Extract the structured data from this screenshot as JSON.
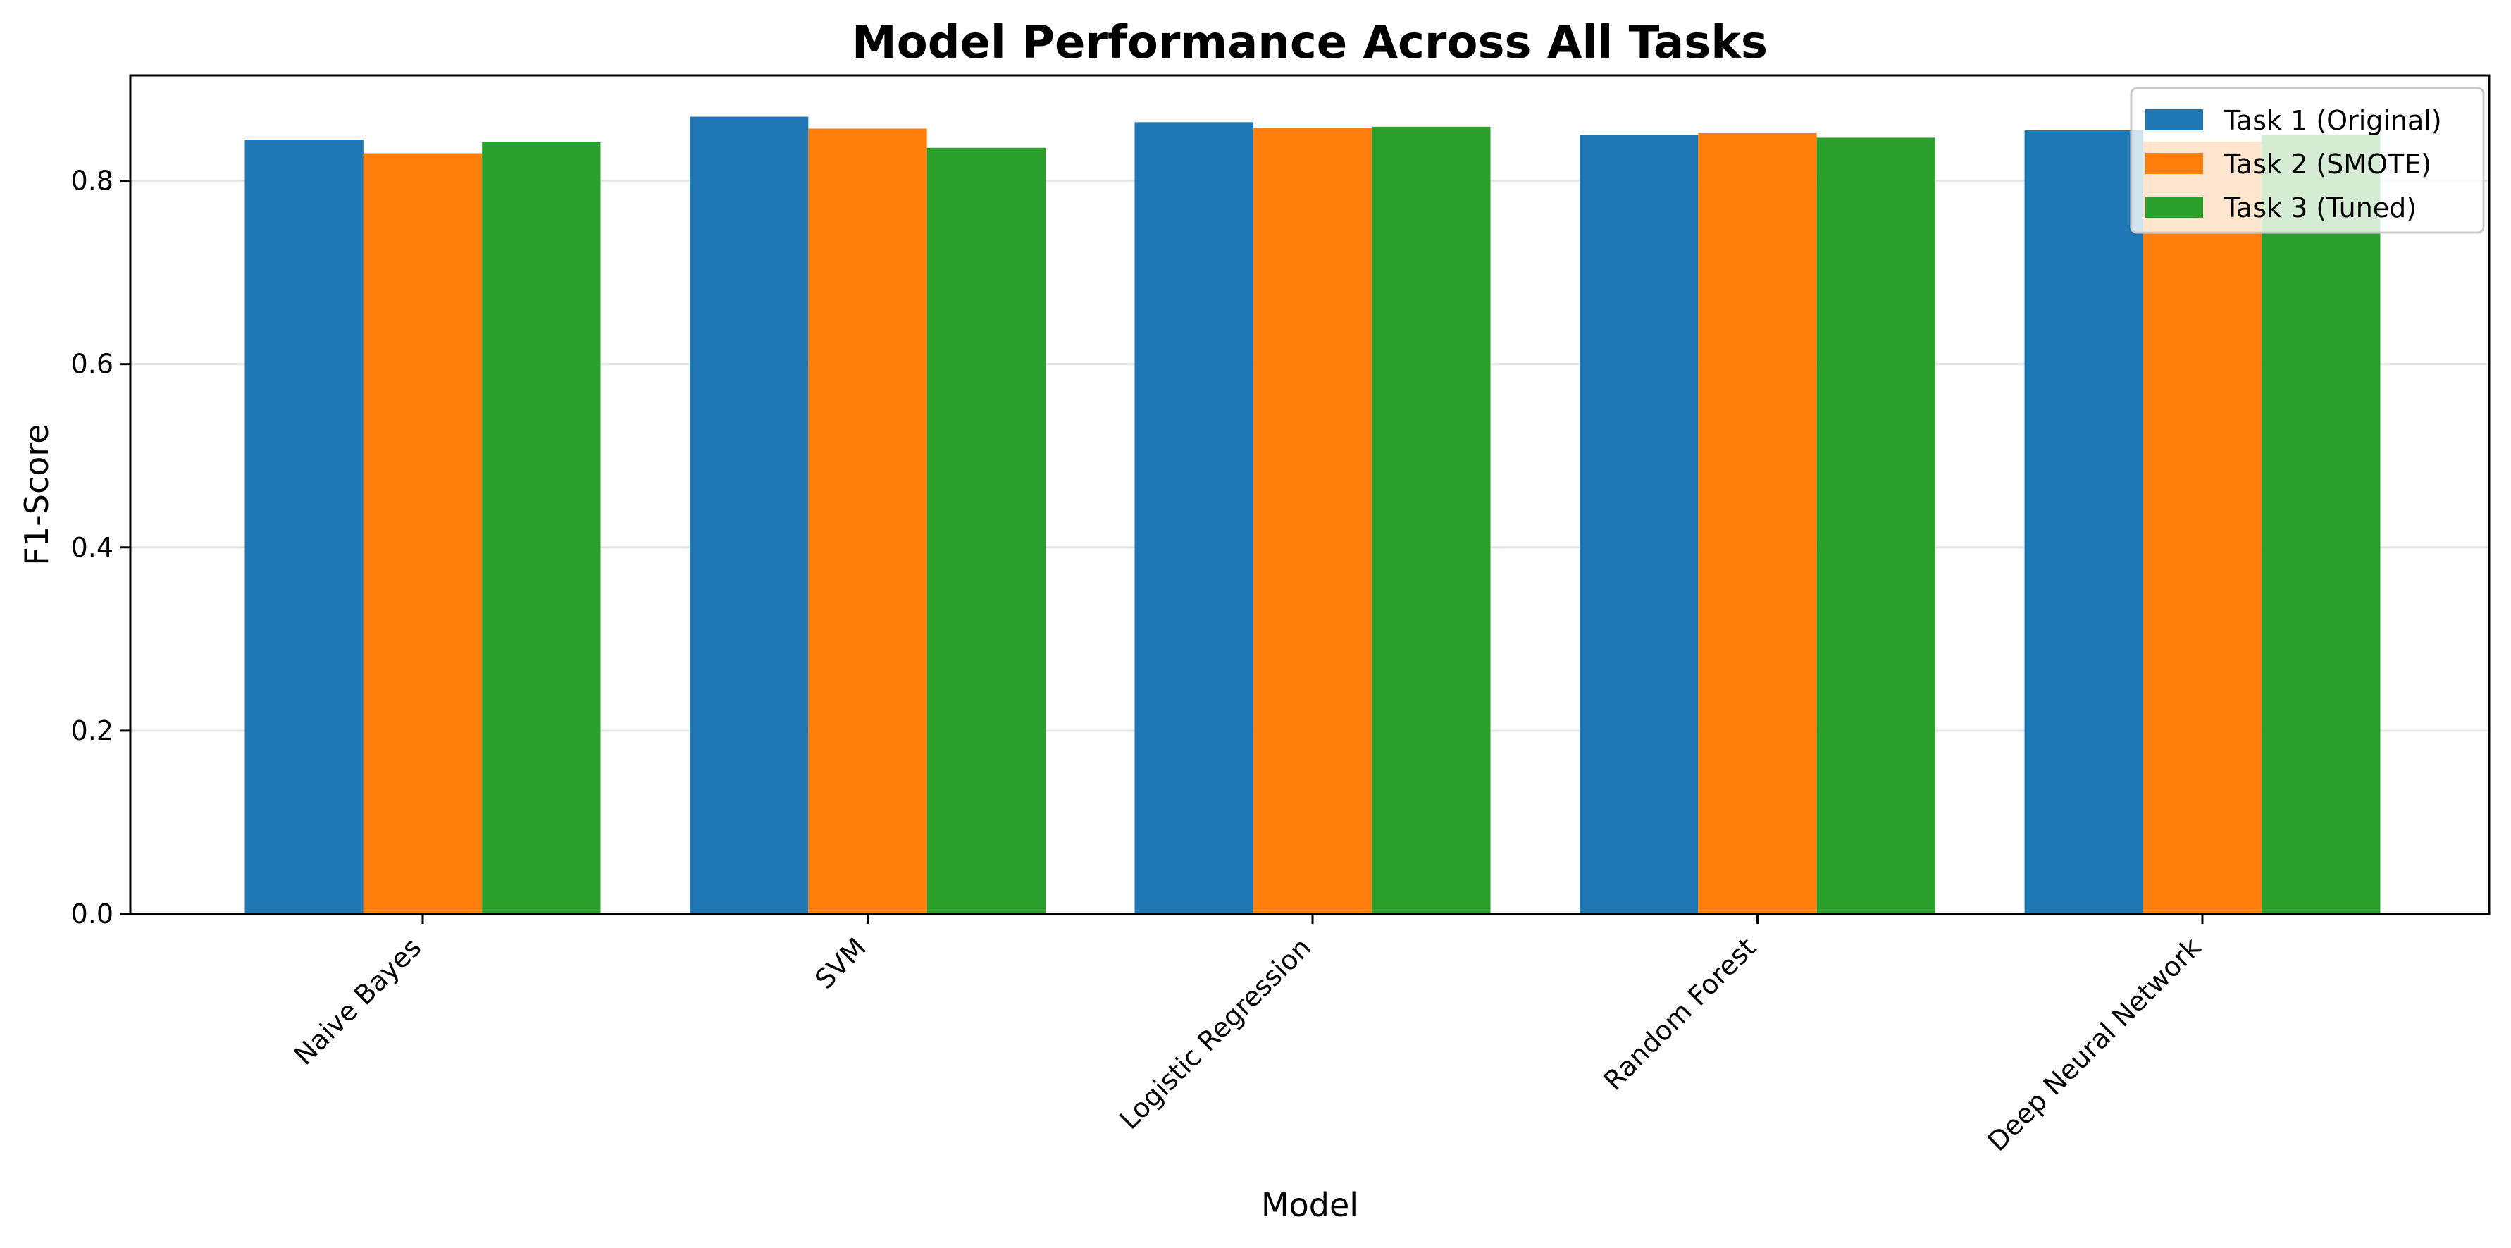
{
  "chart_data": {
    "type": "bar",
    "title": "Model Performance Across All Tasks",
    "xlabel": "Model",
    "ylabel": "F1-Score",
    "categories": [
      "Naive Bayes",
      "SVM",
      "Logistic Regression",
      "Random Forest",
      "Deep Neural Network"
    ],
    "series": [
      {
        "name": "Task 1 (Original)",
        "color": "#1f77b4",
        "values": [
          0.845,
          0.87,
          0.864,
          0.85,
          0.855
        ]
      },
      {
        "name": "Task 2 (SMOTE)",
        "color": "#ff7f0e",
        "values": [
          0.83,
          0.857,
          0.858,
          0.852,
          0.843
        ]
      },
      {
        "name": "Task 3 (Tuned)",
        "color": "#2ca02c",
        "values": [
          0.842,
          0.836,
          0.859,
          0.847,
          0.85
        ]
      }
    ],
    "ylim": [
      0,
      0.915
    ],
    "yticks": [
      "0.0",
      "0.2",
      "0.4",
      "0.6",
      "0.8"
    ],
    "ytick_values": [
      0,
      0.2,
      0.4,
      0.6,
      0.8
    ],
    "grid": "horizontal",
    "legend_position": "top-right"
  }
}
